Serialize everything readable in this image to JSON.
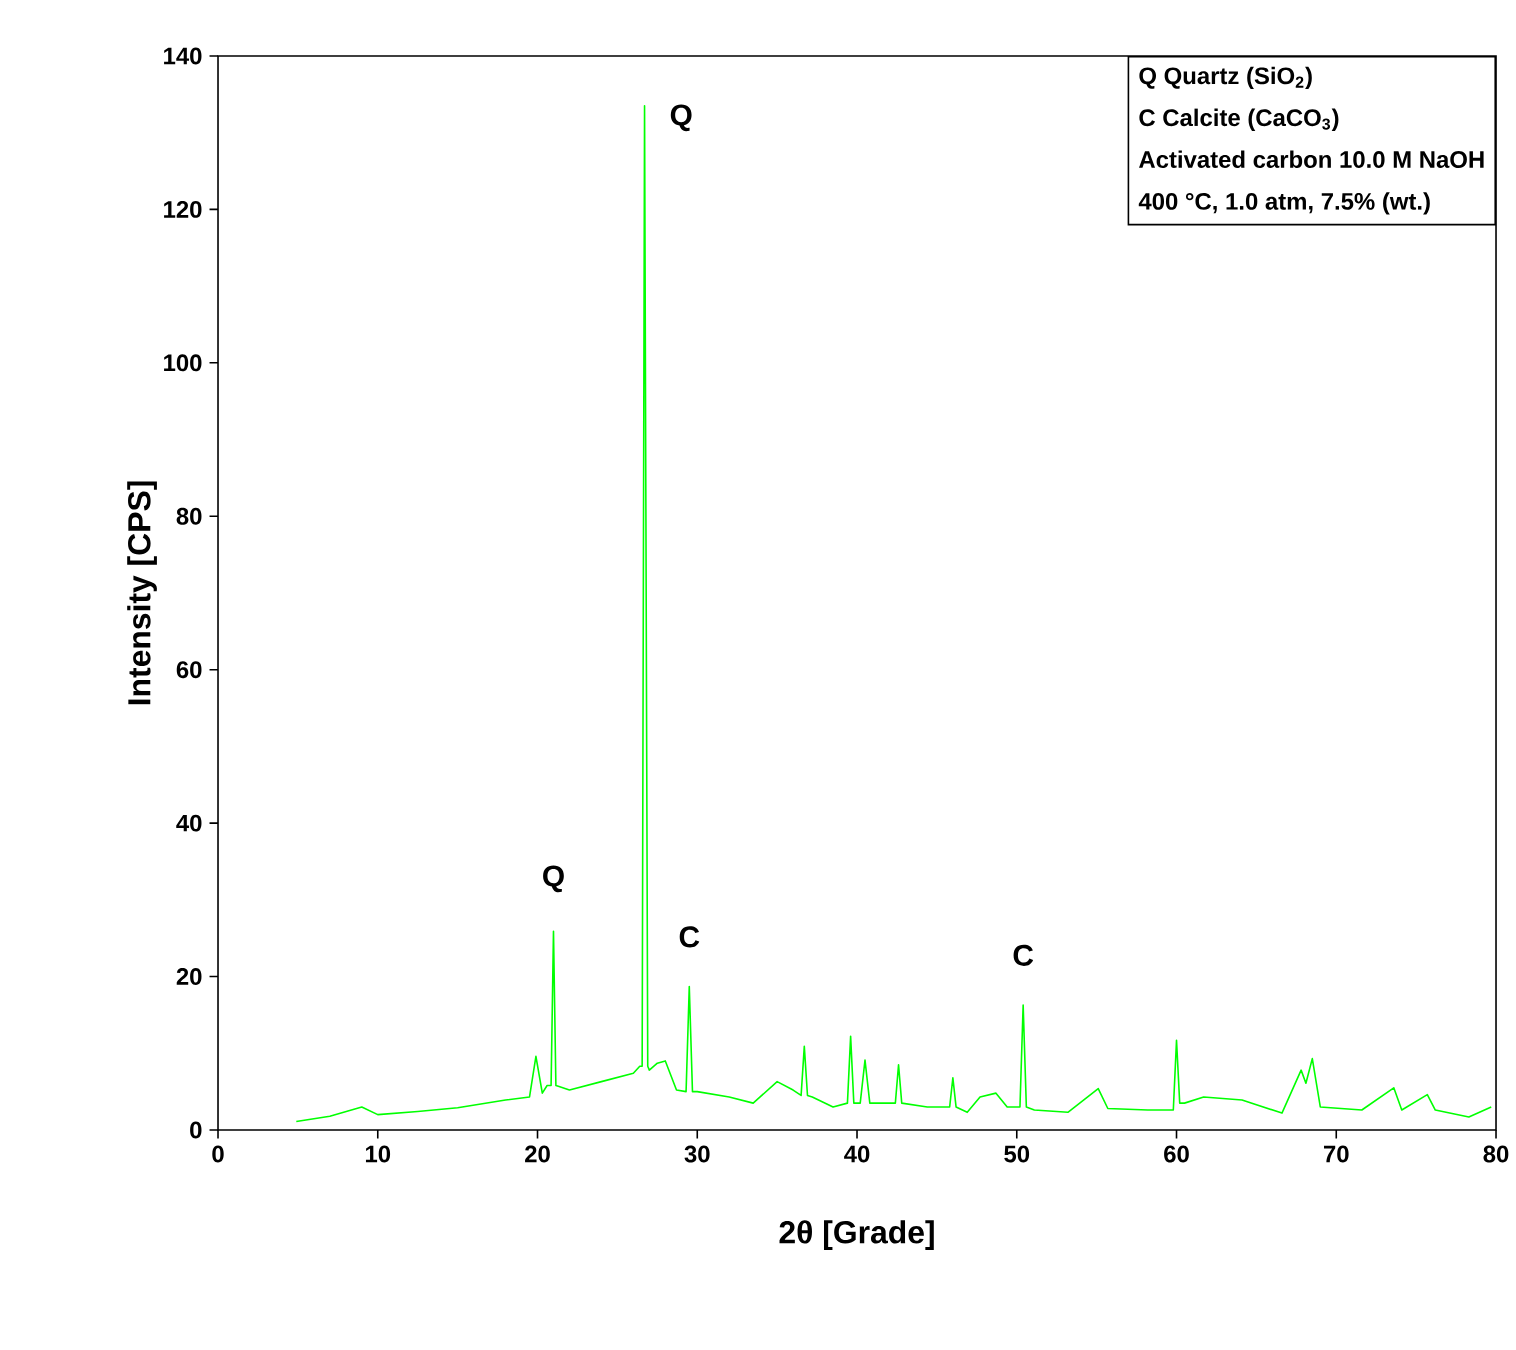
{
  "chart_data": {
    "type": "line",
    "xlabel": "2θ [Grade]",
    "ylabel": "Intensity [CPS]",
    "xlim": [
      0,
      80
    ],
    "ylim": [
      0,
      140
    ],
    "xticks": [
      0,
      10,
      20,
      30,
      40,
      50,
      60,
      70,
      80
    ],
    "yticks": [
      0,
      20,
      40,
      60,
      80,
      100,
      120,
      140
    ],
    "grid": false,
    "marker": "none",
    "line_style": "solid",
    "series": [
      {
        "color": "#00ff00",
        "x": [
          4.9,
          7,
          9,
          10,
          12.5,
          15,
          18,
          19.5,
          19.9,
          20.3,
          20.6,
          20.85,
          21.0,
          21.15,
          21.3,
          22,
          24,
          26,
          26.4,
          26.55,
          26.7,
          26.9,
          27.0,
          27.5,
          28,
          28.7,
          29.3,
          29.5,
          29.7,
          30,
          32,
          33.5,
          35,
          36,
          36.5,
          36.7,
          36.9,
          37.2,
          38.5,
          39.4,
          39.6,
          39.8,
          40.2,
          40.5,
          40.8,
          41,
          42.4,
          42.6,
          42.8,
          44.4,
          45.8,
          46,
          46.2,
          46.9,
          47.7,
          48.7,
          49.4,
          50.2,
          50.4,
          50.6,
          51.1,
          53.2,
          55.1,
          55.7,
          58.2,
          59.8,
          60.0,
          60.2,
          60.5,
          61.7,
          64.1,
          66.6,
          67.8,
          68.1,
          68.5,
          69.0,
          71.6,
          73.6,
          74.1,
          75.7,
          76.2,
          78.3,
          79.7
        ],
        "values": [
          1.1,
          1.8,
          3.0,
          2.0,
          2.4,
          2.9,
          3.9,
          4.3,
          9.6,
          4.8,
          5.8,
          5.8,
          25.9,
          5.8,
          5.7,
          5.2,
          6.3,
          7.4,
          8.3,
          8.3,
          133.5,
          8.3,
          7.8,
          8.7,
          9.0,
          5.2,
          5.0,
          18.7,
          5.0,
          5.0,
          4.3,
          3.5,
          6.3,
          5.2,
          4.5,
          10.9,
          4.5,
          4.3,
          3.0,
          3.5,
          12.2,
          3.5,
          3.5,
          9.1,
          3.5,
          3.5,
          3.5,
          8.5,
          3.5,
          3.0,
          3.0,
          6.8,
          3.0,
          2.3,
          4.3,
          4.8,
          3.0,
          3.0,
          16.3,
          3.0,
          2.6,
          2.3,
          5.4,
          2.8,
          2.6,
          2.6,
          11.7,
          3.5,
          3.5,
          4.3,
          3.9,
          2.2,
          7.8,
          6.1,
          9.3,
          3.0,
          2.6,
          5.5,
          2.6,
          4.6,
          2.6,
          1.7,
          3.0
        ]
      }
    ],
    "annotations": [
      {
        "text": "Q",
        "x": 21.0,
        "y": 25.9
      },
      {
        "text": "Q",
        "x": 26.7,
        "y": 133.5
      },
      {
        "text": "C",
        "x": 29.5,
        "y": 18.7
      },
      {
        "text": "C",
        "x": 50.4,
        "y": 16.3
      },
      "Q Quartz (SiO$_{2}$)",
      "C Calcite (CaCO$_{3}$)",
      "Activated carbon 10.0 M NaOH",
      "400 °C, 1.0 atm, 7.5% (wt.)"
    ]
  }
}
